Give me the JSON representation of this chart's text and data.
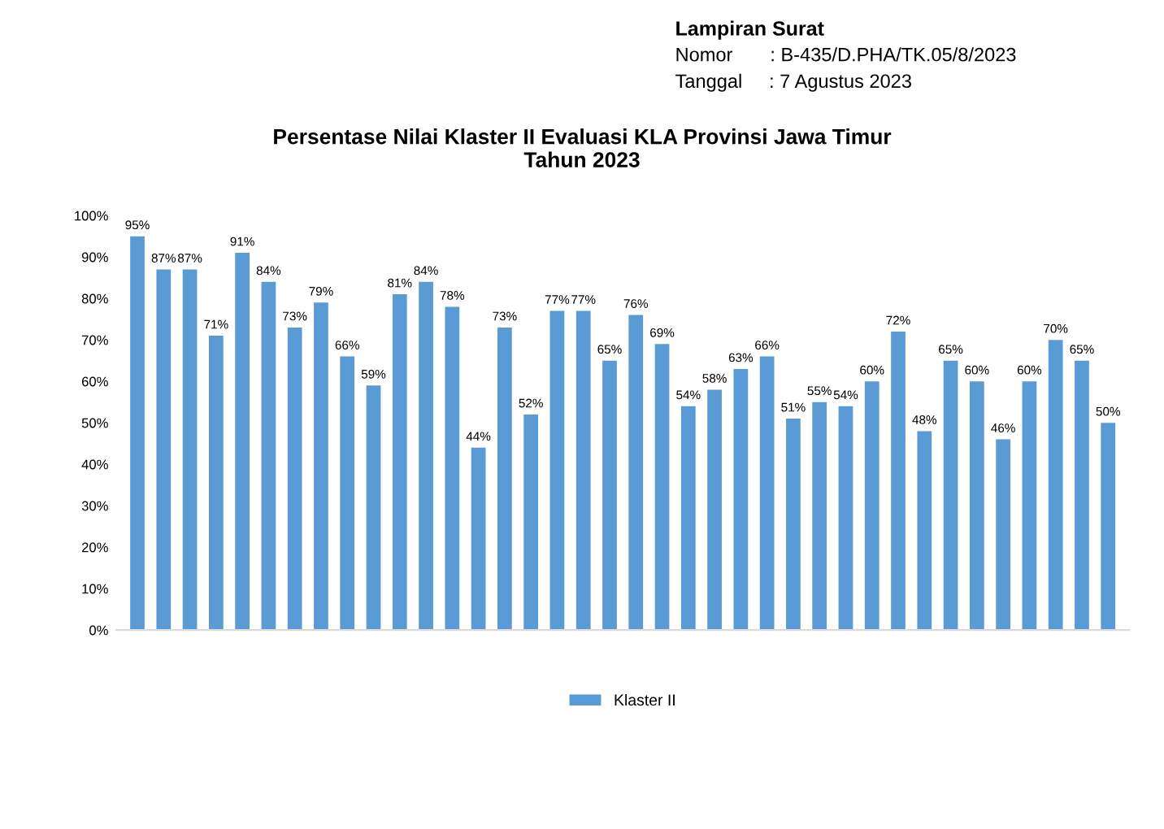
{
  "chart_data": {
    "type": "bar",
    "title": "Persentase Nilai Klaster II Evaluasi KLA Provinsi Jawa Timur\nTahun 2023",
    "annotations": [
      "Lampiran Surat",
      "Nomor       : B-435/D.PHA/TK.05/8/2023",
      "Tanggal     : 7 Agustus 2023"
    ],
    "categories": [
      null,
      null,
      null,
      null,
      null,
      null,
      null,
      null,
      null,
      null,
      null,
      null,
      null,
      null,
      null,
      null,
      null,
      null,
      null,
      null,
      null,
      null,
      null,
      null,
      null,
      null,
      null,
      null,
      null,
      null,
      null,
      null,
      null,
      null,
      null,
      null,
      null,
      null
    ],
    "series": [
      {
        "name": "Klaster II",
        "color": "#5b9bd5",
        "values": [
          95,
          87,
          87,
          71,
          91,
          84,
          73,
          79,
          66,
          59,
          81,
          84,
          78,
          44,
          73,
          52,
          77,
          77,
          65,
          76,
          69,
          54,
          58,
          63,
          66,
          51,
          55,
          54,
          60,
          72,
          48,
          65,
          60,
          46,
          60,
          70,
          65,
          50
        ],
        "value_labels": [
          "95%",
          "87%",
          "87%",
          "71%",
          "91%",
          "84%",
          "73%",
          "79%",
          "66%",
          "59%",
          "81%",
          "84%",
          "78%",
          "44%",
          "73%",
          "52%",
          "77%",
          "77%",
          "65%",
          "76%",
          "69%",
          "54%",
          "58%",
          "63%",
          "66%",
          "51%",
          "55%",
          "54%",
          "60%",
          "72%",
          "48%",
          "65%",
          "60%",
          "46%",
          "60%",
          "70%",
          "65%",
          "50%"
        ]
      }
    ],
    "ylim": [
      0,
      100
    ],
    "yticks": [
      {
        "value": 0,
        "label": "0%"
      },
      {
        "value": 10,
        "label": "10%"
      },
      {
        "value": 20,
        "label": "20%"
      },
      {
        "value": 30,
        "label": "30%"
      },
      {
        "value": 40,
        "label": "40%"
      },
      {
        "value": 50,
        "label": "50%"
      },
      {
        "value": 60,
        "label": "60%"
      },
      {
        "value": 70,
        "label": "70%"
      },
      {
        "value": 80,
        "label": "80%"
      },
      {
        "value": 90,
        "label": "90%"
      },
      {
        "value": 100,
        "label": "100%"
      }
    ],
    "grid": false,
    "legend": "bottom"
  }
}
